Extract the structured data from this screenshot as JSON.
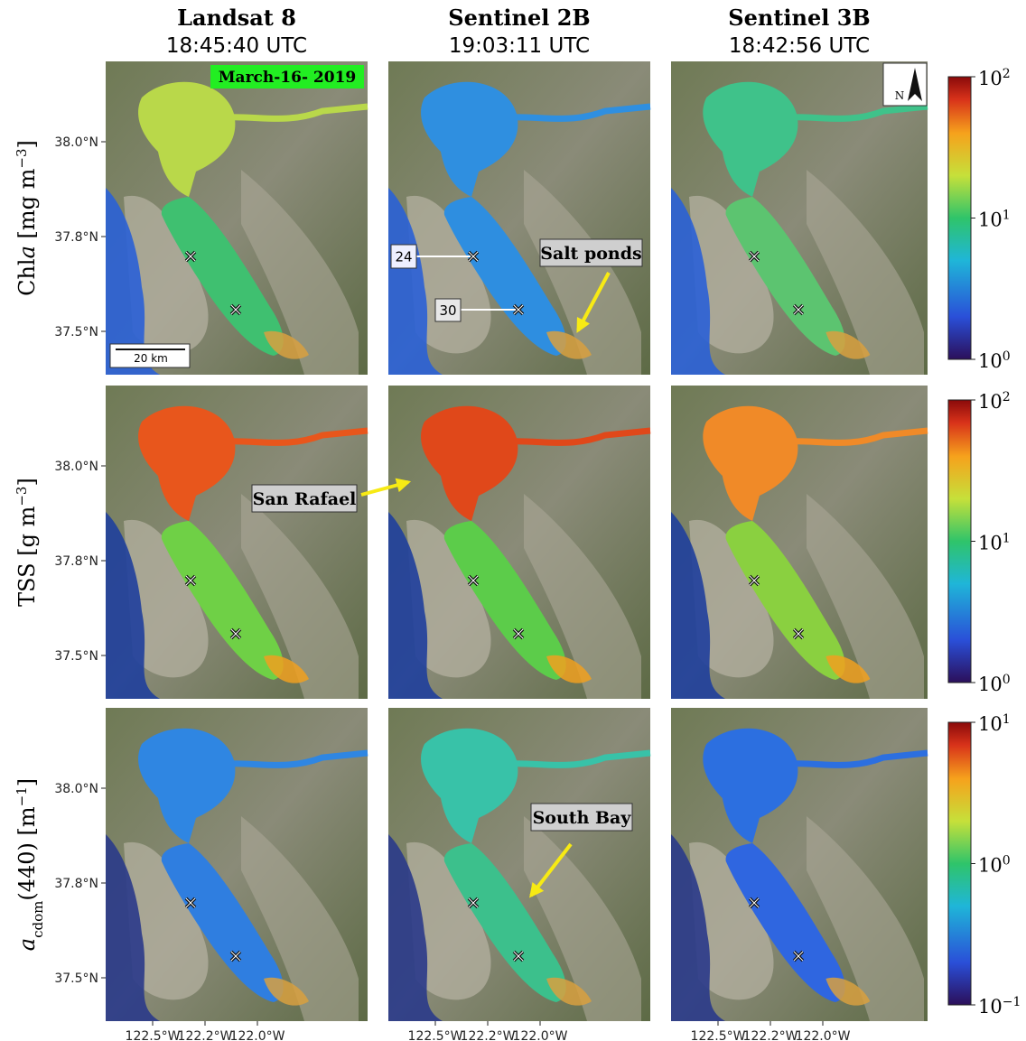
{
  "columns": [
    {
      "title": "Landsat 8",
      "time": "18:45:40 UTC"
    },
    {
      "title": "Sentinel 2B",
      "time": "19:03:11 UTC"
    },
    {
      "title": "Sentinel 3B",
      "time": "18:42:56 UTC"
    }
  ],
  "rows": [
    {
      "label": [
        {
          "t": "Chl"
        },
        {
          "t": "a",
          "s": "italic"
        },
        {
          "t": " [mg m"
        },
        {
          "t": "−3",
          "s": "sup"
        },
        {
          "t": "]"
        }
      ],
      "colorbar": [
        {
          "base": "10",
          "exp": "2"
        },
        {
          "base": "10",
          "exp": "1"
        },
        {
          "base": "10",
          "exp": "0"
        }
      ]
    },
    {
      "label": [
        {
          "t": "TSS [g m"
        },
        {
          "t": "−3",
          "s": "sup"
        },
        {
          "t": "]"
        }
      ],
      "colorbar": [
        {
          "base": "10",
          "exp": "2"
        },
        {
          "base": "10",
          "exp": "1"
        },
        {
          "base": "10",
          "exp": "0"
        }
      ]
    },
    {
      "label": [
        {
          "t": "a",
          "s": "italic"
        },
        {
          "t": "cdom",
          "s": "sub"
        },
        {
          "t": "(440) [m"
        },
        {
          "t": "−1",
          "s": "sup"
        },
        {
          "t": "]"
        }
      ],
      "colorbar": [
        {
          "base": "10",
          "exp": "1"
        },
        {
          "base": "10",
          "exp": "0"
        },
        {
          "base": "10",
          "exp": "−1"
        }
      ]
    }
  ],
  "y_ticks": [
    "38.0°N",
    "37.8°N",
    "37.5°N"
  ],
  "x_ticks": [
    "122.5°W",
    "122.2°W",
    "122.0°W"
  ],
  "annotations": {
    "date": "March-16- 2019",
    "scale": "20 km",
    "north": "N",
    "station_a": "24",
    "station_b": "30",
    "salt_ponds": "Salt ponds",
    "san_rafael": "San Rafael",
    "south_bay": "South Bay"
  }
}
